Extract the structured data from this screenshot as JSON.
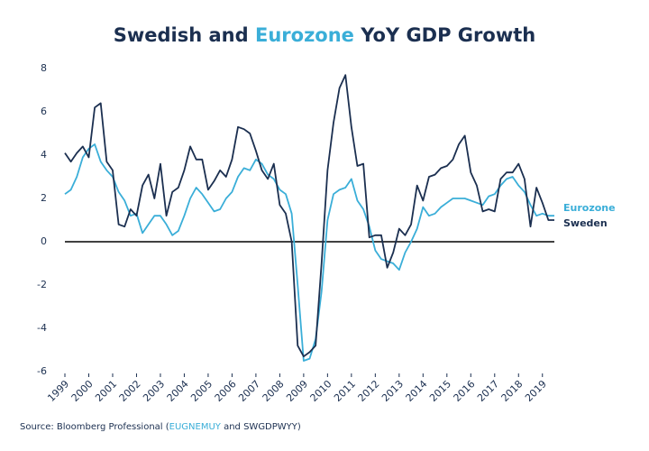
{
  "chart_data": {
    "type": "line",
    "title": [
      "Swedish and ",
      "Eurozone",
      " YoY GDP Growth"
    ],
    "source": [
      "Source: Bloomberg Professional (",
      "EUGNEMUY",
      " and SWGDPWYY)"
    ],
    "x": [
      1999,
      1999.25,
      1999.5,
      1999.75,
      2000,
      2000.25,
      2000.5,
      2000.75,
      2001,
      2001.25,
      2001.5,
      2001.75,
      2002,
      2002.25,
      2002.5,
      2002.75,
      2003,
      2003.25,
      2003.5,
      2003.75,
      2004,
      2004.25,
      2004.5,
      2004.75,
      2005,
      2005.25,
      2005.5,
      2005.75,
      2006,
      2006.25,
      2006.5,
      2006.75,
      2007,
      2007.25,
      2007.5,
      2007.75,
      2008,
      2008.25,
      2008.5,
      2008.75,
      2009,
      2009.25,
      2009.5,
      2009.75,
      2010,
      2010.25,
      2010.5,
      2010.75,
      2011,
      2011.25,
      2011.5,
      2011.75,
      2012,
      2012.25,
      2012.5,
      2012.75,
      2013,
      2013.25,
      2013.5,
      2013.75,
      2014,
      2014.25,
      2014.5,
      2014.75,
      2015,
      2015.25,
      2015.5,
      2015.75,
      2016,
      2016.25,
      2016.5,
      2016.75,
      2017,
      2017.25,
      2017.5,
      2017.75,
      2018,
      2018.25,
      2018.5,
      2018.75,
      2019,
      2019.25,
      2019.5
    ],
    "series": [
      {
        "name": "Eurozone",
        "color": "#3aaed8",
        "values": [
          2.2,
          2.4,
          3.0,
          3.9,
          4.3,
          4.5,
          3.7,
          3.3,
          3.0,
          2.3,
          1.9,
          1.2,
          1.3,
          0.4,
          0.8,
          1.2,
          1.2,
          0.8,
          0.3,
          0.5,
          1.2,
          2.0,
          2.5,
          2.2,
          1.8,
          1.4,
          1.5,
          2.0,
          2.3,
          3.0,
          3.4,
          3.3,
          3.8,
          3.6,
          3.1,
          2.9,
          2.4,
          2.2,
          1.3,
          -2.0,
          -5.5,
          -5.4,
          -4.5,
          -2.3,
          1.0,
          2.2,
          2.4,
          2.5,
          2.9,
          1.9,
          1.5,
          0.7,
          -0.4,
          -0.8,
          -0.9,
          -1.0,
          -1.3,
          -0.5,
          0.0,
          0.6,
          1.6,
          1.2,
          1.3,
          1.6,
          1.8,
          2.0,
          2.0,
          2.0,
          1.9,
          1.8,
          1.7,
          2.1,
          2.2,
          2.6,
          2.9,
          3.0,
          2.6,
          2.3,
          1.7,
          1.2,
          1.3,
          1.2,
          1.2
        ]
      },
      {
        "name": "Sweden",
        "color": "#1b2f50",
        "values": [
          4.1,
          3.7,
          4.1,
          4.4,
          3.9,
          6.2,
          6.4,
          3.7,
          3.3,
          0.8,
          0.7,
          1.5,
          1.2,
          2.6,
          3.1,
          2.0,
          3.6,
          1.2,
          2.3,
          2.5,
          3.3,
          4.4,
          3.8,
          3.8,
          2.4,
          2.8,
          3.3,
          3.0,
          3.8,
          5.3,
          5.2,
          5.0,
          4.2,
          3.3,
          2.9,
          3.6,
          1.7,
          1.3,
          0.0,
          -4.8,
          -5.3,
          -5.1,
          -4.8,
          -1.0,
          3.3,
          5.5,
          7.1,
          7.7,
          5.3,
          3.5,
          3.6,
          0.2,
          0.3,
          0.3,
          -1.2,
          -0.5,
          0.6,
          0.3,
          0.8,
          2.6,
          1.9,
          3.0,
          3.1,
          3.4,
          3.5,
          3.8,
          4.5,
          4.9,
          3.2,
          2.6,
          1.4,
          1.5,
          1.4,
          2.9,
          3.2,
          3.2,
          3.6,
          2.9,
          0.7,
          2.5,
          1.8,
          1.0,
          1.0
        ]
      }
    ],
    "xlim": [
      1999,
      2019.5
    ],
    "xticks": [
      1999,
      2000,
      2001,
      2002,
      2003,
      2004,
      2005,
      2006,
      2007,
      2008,
      2009,
      2010,
      2011,
      2012,
      2013,
      2014,
      2015,
      2016,
      2017,
      2018,
      2019
    ],
    "ylim": [
      -6,
      8
    ],
    "yticks": [
      -6,
      -4,
      -2,
      0,
      2,
      4,
      6,
      8
    ]
  }
}
